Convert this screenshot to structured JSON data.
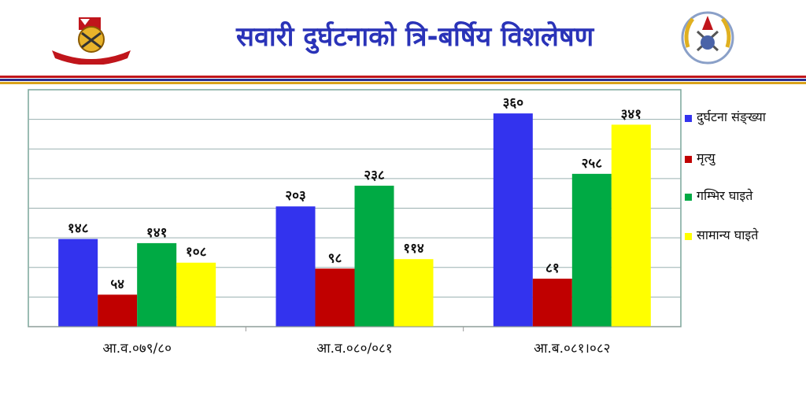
{
  "slide": {
    "title": "सवारी दुर्घटनाको त्रि-बर्षिय विशलेषण",
    "colors": {
      "title": "#2a33b8",
      "stripe_red": "#c0151b",
      "stripe_blue": "#2a2f8f",
      "stripe_gold": "#d9a21b"
    },
    "left_logo_icon": "nepal-police-emblem-icon",
    "right_logo_icon": "traffic-police-emblem-icon"
  },
  "chart_data": {
    "type": "bar",
    "title": "",
    "xlabel": "",
    "ylabel": "",
    "categories": [
      "आ.व.०७९/८०",
      "आ.व.०८०/०८१",
      "आ.ब.०८१।०८२"
    ],
    "series": [
      {
        "name": "दुर्घटना संङ्ख्या",
        "color": "#3333ee",
        "values": [
          148,
          203,
          360
        ],
        "labels": [
          "१४८",
          "२०३",
          "३६०"
        ]
      },
      {
        "name": "मृत्यु",
        "color": "#c00000",
        "values": [
          54,
          98,
          81
        ],
        "labels": [
          "५४",
          "९८",
          "८१"
        ]
      },
      {
        "name": "गम्भिर घाइते",
        "color": "#00aa44",
        "values": [
          141,
          238,
          258
        ],
        "labels": [
          "१४१",
          "२३८",
          "२५८"
        ]
      },
      {
        "name": "सामान्य घाइते",
        "color": "#ffff00",
        "values": [
          108,
          114,
          341
        ],
        "labels": [
          "१०८",
          "११४",
          "३४१"
        ]
      }
    ],
    "ylim": [
      0,
      400
    ],
    "y_step": 50,
    "grid": true,
    "legend_position": "right"
  }
}
